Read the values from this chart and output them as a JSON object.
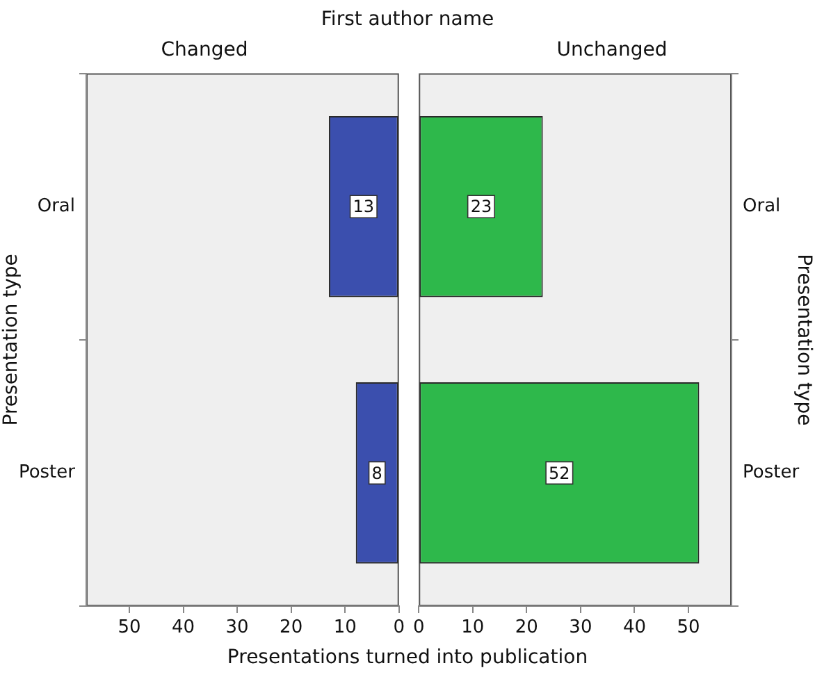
{
  "chart_data": [
    {
      "type": "bar",
      "orientation": "horizontal",
      "title": "Changed",
      "ylabel": "Presentation type",
      "xlabel": "Presentations turned into publication",
      "annotations": [
        "First author name"
      ],
      "categories": [
        "Oral",
        "Poster"
      ],
      "values": [
        13,
        8
      ],
      "color": "#3b4fae",
      "data_labels": true,
      "xlim": [
        58,
        0
      ],
      "xticks": [
        50,
        40,
        30,
        20,
        10,
        0
      ],
      "grid": false
    },
    {
      "type": "bar",
      "orientation": "horizontal",
      "title": "Unchanged",
      "y2label": "Presentation type",
      "categories": [
        "Oral",
        "Poster"
      ],
      "values": [
        23,
        52
      ],
      "color": "#2eb84b",
      "data_labels": true,
      "xlim": [
        0,
        58
      ],
      "xticks": [
        0,
        10,
        20,
        30,
        40,
        50
      ],
      "grid": false
    }
  ]
}
